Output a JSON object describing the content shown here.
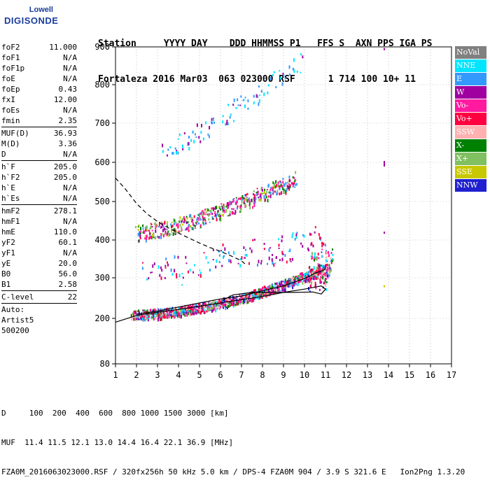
{
  "logo": {
    "line1": "Lowell",
    "line2": "DIGISONDE"
  },
  "header": {
    "line1": "Station     YYYY DAY    DDD HHMMSS P1   FFS S  AXN PPS IGA PS",
    "line2": "Fortaleza 2016 Mar03  063 023000 RSF      1 714 100 10+ 11"
  },
  "params": {
    "group1": [
      {
        "k": "foF2",
        "v": "11.000"
      },
      {
        "k": "foF1",
        "v": "N/A"
      },
      {
        "k": "foF1p",
        "v": "N/A"
      },
      {
        "k": "foE",
        "v": "N/A"
      },
      {
        "k": "foEp",
        "v": "0.43"
      },
      {
        "k": "fxI",
        "v": "12.00"
      },
      {
        "k": "foEs",
        "v": "N/A"
      },
      {
        "k": "fmin",
        "v": "2.35"
      }
    ],
    "group2": [
      {
        "k": "MUF(D)",
        "v": "36.93"
      },
      {
        "k": "M(D)",
        "v": "3.36"
      },
      {
        "k": "D",
        "v": "N/A"
      }
    ],
    "group3": [
      {
        "k": "h`F",
        "v": "205.0"
      },
      {
        "k": "h`F2",
        "v": "205.0"
      },
      {
        "k": "h`E",
        "v": "N/A"
      },
      {
        "k": "h`Es",
        "v": "N/A"
      }
    ],
    "group4": [
      {
        "k": "hmF2",
        "v": "278.1"
      },
      {
        "k": "hmF1",
        "v": "N/A"
      },
      {
        "k": "hmE",
        "v": "110.0"
      },
      {
        "k": "yF2",
        "v": "60.1"
      },
      {
        "k": "yF1",
        "v": "N/A"
      },
      {
        "k": "yE",
        "v": "20.0"
      },
      {
        "k": "B0",
        "v": "56.0"
      },
      {
        "k": "B1",
        "v": "2.58"
      }
    ],
    "group5": [
      {
        "k": "C-level",
        "v": "22"
      }
    ],
    "auto": [
      "Auto:",
      "Artist5",
      "500200"
    ]
  },
  "legend": [
    {
      "label": "NoVal",
      "color": "#808080"
    },
    {
      "label": "NNE",
      "color": "#00e5ff"
    },
    {
      "label": "E",
      "color": "#3399ff"
    },
    {
      "label": "W",
      "color": "#a000a0"
    },
    {
      "label": "Vo-",
      "color": "#ff1aa0"
    },
    {
      "label": "Vo+",
      "color": "#ff0040"
    },
    {
      "label": "SSW",
      "color": "#ffb0b0"
    },
    {
      "label": "X-",
      "color": "#008000"
    },
    {
      "label": "X+",
      "color": "#80c060"
    },
    {
      "label": "SSE",
      "color": "#c8c800"
    },
    {
      "label": "NNW",
      "color": "#2020d0"
    }
  ],
  "footer": {
    "line1": "D     100  200  400  600  800 1000 1500 3000 [km]",
    "line2": "MUF  11.4 11.5 12.1 13.0 14.4 16.4 22.1 36.9 [MHz]",
    "line3": "FZA0M_2016063023000.RSF / 320fx256h 50 kHz 5.0 km / DPS-4 FZA0M 904 / 3.9 S 321.6 E   Ion2Png 1.3.20"
  },
  "chart_data": {
    "type": "scatter",
    "x": [
      1,
      2,
      3,
      4,
      5,
      6,
      7,
      8,
      9,
      10,
      11,
      12,
      13,
      14,
      15,
      16,
      17
    ],
    "xlim": [
      1,
      17
    ],
    "ylim": [
      80,
      900
    ],
    "yticks": [
      80,
      200,
      300,
      400,
      500,
      600,
      700,
      800,
      900
    ],
    "xlabel": "",
    "ylabel": "",
    "grid": true,
    "legend_placement": "right",
    "traces": [
      {
        "name": "profile",
        "style": "solid",
        "points": [
          [
            1.0,
            190
          ],
          [
            2,
            207
          ],
          [
            3,
            215
          ],
          [
            4,
            222
          ],
          [
            5,
            230
          ],
          [
            6,
            238
          ],
          [
            7,
            246
          ],
          [
            8,
            254
          ],
          [
            9,
            264
          ],
          [
            10,
            272
          ],
          [
            10.8,
            280
          ],
          [
            11,
            272
          ],
          [
            10.8,
            260
          ],
          [
            10.4,
            265
          ],
          [
            9.5,
            264
          ],
          [
            8.5,
            264
          ],
          [
            7.5,
            264
          ],
          [
            6.6,
            258
          ],
          [
            6.3,
            250
          ],
          [
            6.1,
            244
          ]
        ]
      },
      {
        "name": "",
        "style": "dashed",
        "points": [
          [
            1.0,
            560
          ],
          [
            1.5,
            530
          ],
          [
            2,
            495
          ],
          [
            2.5,
            468
          ],
          [
            3,
            448
          ],
          [
            3.5,
            432
          ],
          [
            4,
            418
          ],
          [
            4.5,
            405
          ],
          [
            5,
            392
          ],
          [
            5.5,
            380
          ],
          [
            6,
            370
          ],
          [
            6.5,
            358
          ],
          [
            7,
            345
          ],
          [
            7.2,
            335
          ]
        ]
      },
      {
        "name": "",
        "style": "solid-fit",
        "points": [
          [
            2,
            210
          ],
          [
            3,
            218
          ],
          [
            4,
            228
          ],
          [
            5,
            238
          ],
          [
            6,
            248
          ],
          [
            7,
            255
          ],
          [
            8,
            268
          ],
          [
            9,
            280
          ],
          [
            10,
            298
          ],
          [
            10.5,
            312
          ],
          [
            11,
            322
          ]
        ]
      }
    ],
    "echoes": [
      {
        "layer": "F-trace",
        "xrange": [
          1.8,
          11.2
        ],
        "base": [
          210,
          330
        ]
      },
      {
        "layer": "2F-trace",
        "xrange": [
          2.0,
          9.6
        ],
        "base": [
          420,
          560
        ]
      },
      {
        "layer": "3F-trace",
        "xrange": [
          3.2,
          9.8
        ],
        "base": [
          630,
          870
        ]
      },
      {
        "layer": "spread-F",
        "xrange": [
          2.0,
          11.0
        ],
        "base": [
          280,
          420
        ]
      }
    ]
  }
}
